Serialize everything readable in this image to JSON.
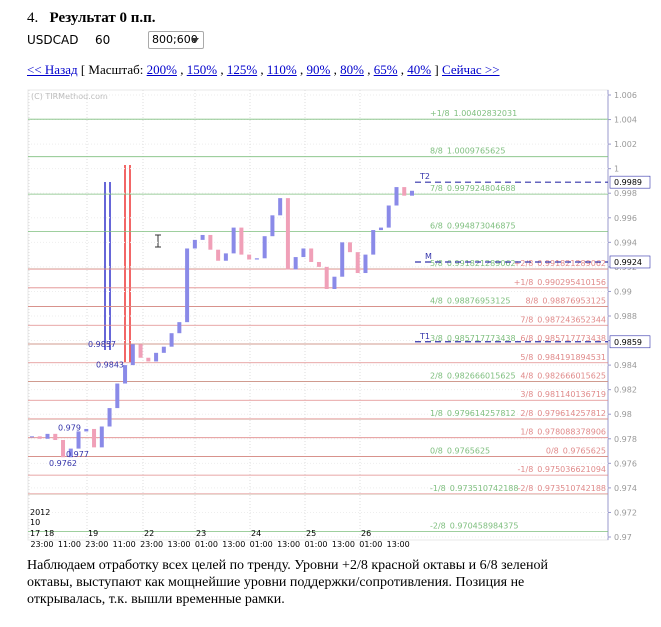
{
  "header": {
    "number": "4.",
    "title": "Результат 0 п.п.",
    "symbol": "USDCAD",
    "timeframe": "60",
    "size": "800;600"
  },
  "nav": {
    "back": "<< Назад",
    "scale_label": "[ Масштаб:",
    "scales": [
      "200%",
      "150%",
      "125%",
      "110%",
      "90%",
      "80%",
      "65%",
      "40%"
    ],
    "separator": ",",
    "close": "]",
    "forward": "Сейчас >>"
  },
  "chart": {
    "copyright": "(C) TIRMethod.com",
    "ylim": [
      0.97,
      1.006
    ],
    "yticks": [
      1.006,
      1.004,
      1.002,
      1,
      0.998,
      0.996,
      0.994,
      0.992,
      0.99,
      0.988,
      0.986,
      0.984,
      0.982,
      0.98,
      0.978,
      0.976,
      0.974,
      0.972,
      0.97
    ],
    "green_levels": {
      "color": "#7fbf7f",
      "levels": [
        {
          "name": "+1/8",
          "value": 1.00402832031
        },
        {
          "name": "8/8",
          "value": 1.0009765625
        },
        {
          "name": "7/8",
          "value": 0.997924804688
        },
        {
          "name": "6/8",
          "value": 0.994873046875
        },
        {
          "name": "5/8",
          "value": 0.991821289062
        },
        {
          "name": "4/8",
          "value": 0.98876953125
        },
        {
          "name": "3/8",
          "value": 0.985717773438
        },
        {
          "name": "2/8",
          "value": 0.982666015625
        },
        {
          "name": "1/8",
          "value": 0.979614257812
        },
        {
          "name": "0/8",
          "value": 0.9765625
        },
        {
          "name": "-1/8",
          "value": 0.973510742188
        },
        {
          "name": "-2/8",
          "value": 0.970458984375
        }
      ]
    },
    "red_levels": {
      "color": "#e08a8a",
      "levels": [
        {
          "name": "+2/8",
          "value": 0.991821289062
        },
        {
          "name": "+1/8",
          "value": 0.990295410156
        },
        {
          "name": "8/8",
          "value": 0.98876953125
        },
        {
          "name": "7/8",
          "value": 0.987243652344
        },
        {
          "name": "6/8",
          "value": 0.985717773438
        },
        {
          "name": "5/8",
          "value": 0.984191894531
        },
        {
          "name": "4/8",
          "value": 0.982666015625
        },
        {
          "name": "3/8",
          "value": 0.981140136719
        },
        {
          "name": "2/8",
          "value": 0.979614257812
        },
        {
          "name": "1/8",
          "value": 0.978088378906
        },
        {
          "name": "0/8",
          "value": 0.9765625
        },
        {
          "name": "-1/8",
          "value": 0.975036621094
        },
        {
          "name": "-2/8",
          "value": 0.973510742188
        }
      ]
    },
    "targets": [
      {
        "name": "T2",
        "value": 0.9989
      },
      {
        "name": "M",
        "value": 0.9924
      },
      {
        "name": "T1",
        "value": 0.9859
      }
    ],
    "point_labels": [
      0.9857,
      0.9843,
      0.979,
      0.977,
      0.9762
    ],
    "prices": [
      0.9782,
      0.978,
      0.9784,
      0.9779,
      0.9765,
      0.9772,
      0.9786,
      0.9788,
      0.9773,
      0.979,
      0.9805,
      0.9825,
      0.984,
      0.9857,
      0.9846,
      0.9843,
      0.985,
      0.9855,
      0.9866,
      0.9875,
      0.9935,
      0.9942,
      0.9946,
      0.9934,
      0.9925,
      0.9931,
      0.9952,
      0.993,
      0.9926,
      0.9927,
      0.9945,
      0.9962,
      0.9976,
      0.9918,
      0.9928,
      0.9935,
      0.9924,
      0.992,
      0.9902,
      0.9912,
      0.994,
      0.9932,
      0.9915,
      0.993,
      0.995,
      0.9952,
      0.997,
      0.9985,
      0.9978,
      0.9982
    ],
    "year": "2012",
    "month": "10",
    "days": [
      "17",
      "18",
      "19",
      "22",
      "23",
      "24",
      "25",
      "26"
    ],
    "times": [
      "23:00",
      "11:00",
      "23:00",
      "11:00",
      "23:00",
      "13:00",
      "01:00",
      "13:00",
      "01:00",
      "13:00",
      "01:00",
      "13:00",
      "01:00",
      "13:00"
    ]
  },
  "description": "Наблюдаем отработку всех целей по тренду. Уровни +2/8 красной октавы и 6/8 зеленой октавы, выступают как мощнейшие уровни поддержки/сопротивления. Позиция не открывалась, т.к. вышли временные рамки."
}
